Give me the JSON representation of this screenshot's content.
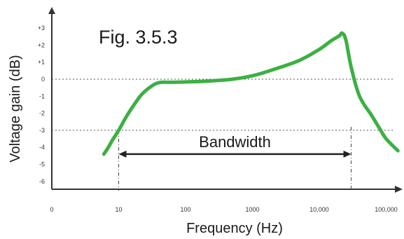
{
  "chart_data": {
    "type": "line",
    "title": "Fig. 3.5.3",
    "xlabel": "Frequency (Hz)",
    "ylabel": "Voltage gain (dB)",
    "x_scale": "log",
    "x_ticks": [
      {
        "value": 1,
        "label": "0"
      },
      {
        "value": 10,
        "label": "10"
      },
      {
        "value": 100,
        "label": "100"
      },
      {
        "value": 1000,
        "label": "1000"
      },
      {
        "value": 10000,
        "label": "10,000"
      },
      {
        "value": 100000,
        "label": "100,000"
      }
    ],
    "y_ticks": [
      {
        "value": 3,
        "label": "+3"
      },
      {
        "value": 2,
        "label": "+2"
      },
      {
        "value": 1,
        "label": "+1"
      },
      {
        "value": 0,
        "label": "0"
      },
      {
        "value": -1,
        "label": "-1"
      },
      {
        "value": -2,
        "label": "-2"
      },
      {
        "value": -3,
        "label": "-3"
      },
      {
        "value": -4,
        "label": "-4"
      },
      {
        "value": -5,
        "label": "-5"
      },
      {
        "value": -6,
        "label": "-6"
      }
    ],
    "ylim": [
      -6.5,
      3.5
    ],
    "xlim": [
      1,
      200000
    ],
    "grid": false,
    "reference_lines": [
      {
        "y": 0,
        "style": "dotted"
      },
      {
        "y": -3,
        "style": "dotted"
      }
    ],
    "series": [
      {
        "color": "#3cb043",
        "x": [
          6,
          7,
          8,
          10,
          13,
          17,
          22,
          30,
          40,
          60,
          100,
          200,
          500,
          1000,
          2000,
          5000,
          10000,
          15000,
          20000,
          22000,
          25000,
          30000,
          40000,
          60000,
          80000,
          100000,
          150000
        ],
        "y": [
          -4.4,
          -4.0,
          -3.6,
          -3.0,
          -2.2,
          -1.5,
          -0.9,
          -0.45,
          -0.2,
          -0.18,
          -0.16,
          -0.12,
          0.0,
          0.2,
          0.55,
          1.1,
          1.75,
          2.25,
          2.55,
          2.7,
          2.3,
          0.7,
          -1.0,
          -2.1,
          -2.9,
          -3.5,
          -4.2
        ]
      }
    ],
    "annotations": [
      {
        "text": "Bandwidth",
        "from_x": 10,
        "to_x": 30000,
        "y": -4.4,
        "style": "double-arrow"
      }
    ]
  }
}
